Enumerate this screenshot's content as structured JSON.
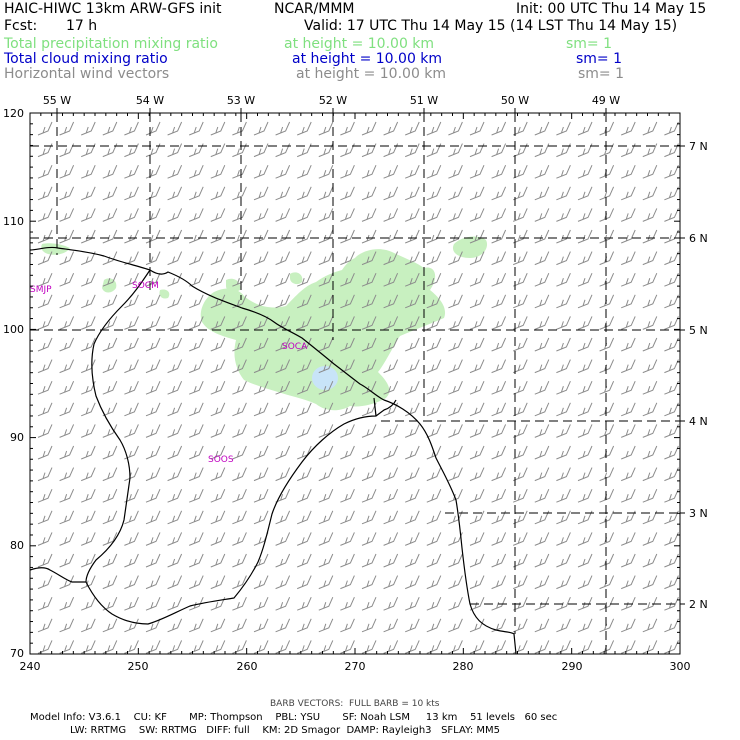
{
  "header": {
    "line1_left": "HAIC-HIWC 13km ARW-GFS init",
    "line1_mid": "NCAR/MMM",
    "line1_right": "Init: 00 UTC Thu 14 May 15",
    "fcst_label": "Fcst:",
    "fcst_value": "17 h",
    "valid": "Valid: 17 UTC Thu 14 May 15 (14 LST Thu 14 May 15)",
    "field1": {
      "name": "Total precipitation mixing ratio",
      "height": "at height = 10.00 km",
      "sm": "sm= 1",
      "color": "#7fe07f"
    },
    "field2": {
      "name": "Total cloud mixing ratio",
      "height": "at height = 10.00 km",
      "sm": "sm= 1",
      "color": "#0000c8"
    },
    "field3": {
      "name": "Horizontal wind vectors",
      "height": "at height = 10.00 km",
      "sm": "sm= 1",
      "color": "#8c8c8c"
    }
  },
  "map": {
    "x_ticks": [
      "240",
      "250",
      "260",
      "270",
      "280",
      "290",
      "300"
    ],
    "y_ticks": [
      "70",
      "80",
      "90",
      "100",
      "110",
      "120"
    ],
    "lon_labels": [
      "55 W",
      "54 W",
      "53 W",
      "52 W",
      "51 W",
      "50 W",
      "49 W"
    ],
    "lat_labels": [
      "7 N",
      "6 N",
      "5 N",
      "4 N",
      "3 N",
      "2 N"
    ],
    "stations": [
      "SMJP",
      "SOCM",
      "SOCA",
      "SOOS"
    ],
    "precip_color": "#c8f0c0",
    "cloud_color": "#c8e4f8",
    "barb_color": "#8c8c8c",
    "station_color": "#c000c0"
  },
  "footer": {
    "barb_note": "BARB VECTORS:  FULL BARB = 10 kts",
    "model_line1": "Model Info: V3.6.1    CU: KF       MP: Thompson    PBL: YSU       SF: Noah LSM     13 km    51 levels   60 sec",
    "model_line2": "LW: RRTMG    SW: RRTMG   DIFF: full    KM: 2D Smagor  DAMP: Rayleigh3   SFLAY: MM5"
  }
}
